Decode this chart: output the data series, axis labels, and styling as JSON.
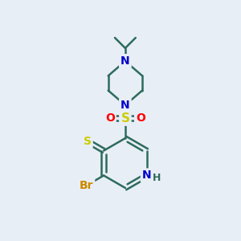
{
  "bg_color": "#e8eef5",
  "bond_color": "#2d6b5e",
  "bond_width": 1.8,
  "atom_colors": {
    "N": "#0000cc",
    "S": "#cccc00",
    "O": "#ff0000",
    "Br": "#cc8800",
    "H": "#2d6b5e"
  },
  "font_size": 10,
  "fig_size": [
    3.0,
    3.0
  ],
  "dpi": 100,
  "xlim": [
    0,
    10
  ],
  "ylim": [
    0,
    10
  ]
}
